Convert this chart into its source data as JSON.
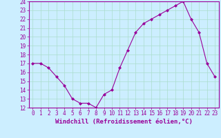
{
  "x": [
    0,
    1,
    2,
    3,
    4,
    5,
    6,
    7,
    8,
    9,
    10,
    11,
    12,
    13,
    14,
    15,
    16,
    17,
    18,
    19,
    20,
    21,
    22,
    23
  ],
  "y": [
    17,
    17,
    16.5,
    15.5,
    14.5,
    13,
    12.5,
    12.5,
    12,
    13.5,
    14,
    16.5,
    18.5,
    20.5,
    21.5,
    22,
    22.5,
    23,
    23.5,
    24,
    22,
    20.5,
    17,
    15.5
  ],
  "line_color": "#990099",
  "marker": "D",
  "marker_size": 2,
  "bg_color": "#cceeff",
  "grid_color": "#aaddcc",
  "xlabel": "Windchill (Refroidissement éolien,°C)",
  "xlabel_color": "#990099",
  "tick_color": "#990099",
  "ylim": [
    12,
    24
  ],
  "xlim": [
    -0.5,
    23.5
  ],
  "yticks": [
    12,
    13,
    14,
    15,
    16,
    17,
    18,
    19,
    20,
    21,
    22,
    23,
    24
  ],
  "xticks": [
    0,
    1,
    2,
    3,
    4,
    5,
    6,
    7,
    8,
    9,
    10,
    11,
    12,
    13,
    14,
    15,
    16,
    17,
    18,
    19,
    20,
    21,
    22,
    23
  ],
  "fontsize_ticks": 5.5,
  "fontsize_xlabel": 6.5,
  "spine_color": "#990099",
  "linewidth": 0.8,
  "grid_linewidth": 0.5
}
